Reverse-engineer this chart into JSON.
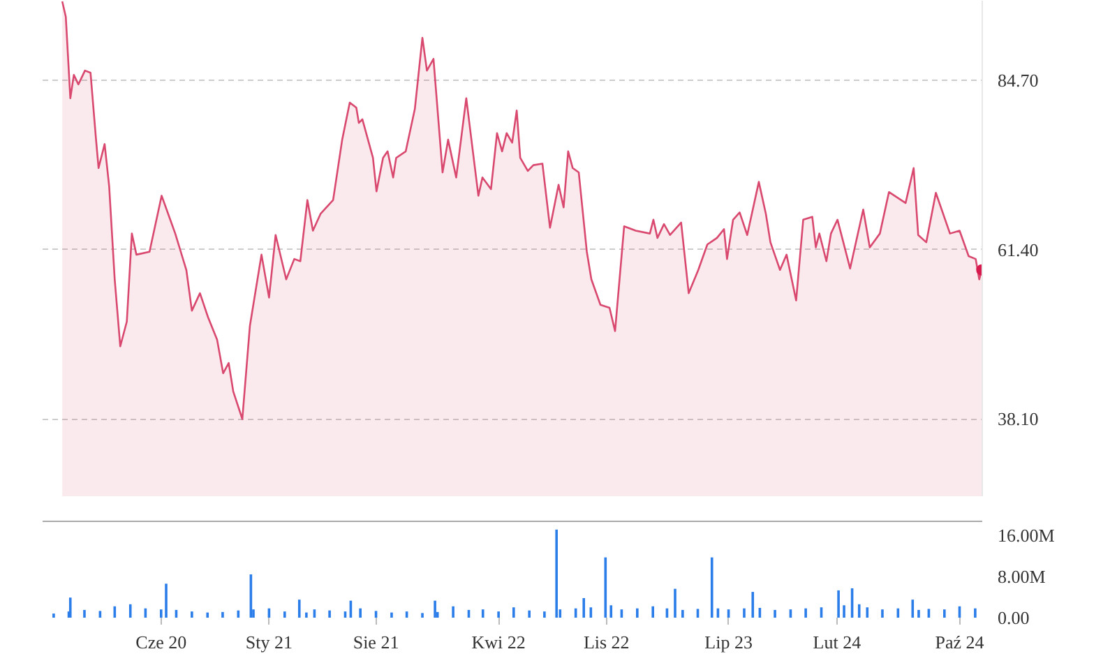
{
  "chart_data": [
    {
      "type": "area",
      "xlim": [
        "2019-10-10",
        "2024-11-15"
      ],
      "ylim": [
        27.5,
        95.6
      ],
      "yticks": [
        {
          "value": 38.1,
          "label": "38.10"
        },
        {
          "value": 61.4,
          "label": "61.40"
        },
        {
          "value": 84.7,
          "label": "84.70"
        }
      ],
      "grid": "y",
      "tick_labels": "y",
      "series": [
        {
          "color": "#d9486e",
          "x": [
            "2019-11-18",
            "2019-11-25",
            "2019-12-04",
            "2019-12-11",
            "2019-12-20",
            "2020-01-02",
            "2020-01-13",
            "2020-01-24",
            "2020-01-29",
            "2020-02-10",
            "2020-02-19",
            "2020-03-01",
            "2020-03-12",
            "2020-03-25",
            "2020-04-04",
            "2020-04-13",
            "2020-05-09",
            "2020-06-02",
            "2020-06-15",
            "2020-06-29",
            "2020-07-21",
            "2020-08-01",
            "2020-08-17",
            "2020-09-02",
            "2020-09-20",
            "2020-10-02",
            "2020-10-13",
            "2020-10-22",
            "2020-11-09",
            "2020-11-24",
            "2020-12-17",
            "2021-01-01",
            "2021-01-14",
            "2021-02-04",
            "2021-02-20",
            "2021-03-04",
            "2021-03-18",
            "2021-03-29",
            "2021-04-13",
            "2021-05-08",
            "2021-05-26",
            "2021-06-10",
            "2021-06-23",
            "2021-06-28",
            "2021-07-05",
            "2021-07-26",
            "2021-08-02",
            "2021-08-15",
            "2021-08-24",
            "2021-09-04",
            "2021-09-10",
            "2021-09-29",
            "2021-10-17",
            "2021-11-01",
            "2021-11-10",
            "2021-11-23",
            "2021-12-11",
            "2021-12-22",
            "2022-01-07",
            "2022-01-27",
            "2022-02-20",
            "2022-02-28",
            "2022-03-17",
            "2022-03-29",
            "2022-04-08",
            "2022-04-17",
            "2022-04-28",
            "2022-05-07",
            "2022-05-14",
            "2022-05-29",
            "2022-06-09",
            "2022-06-27",
            "2022-07-12",
            "2022-07-29",
            "2022-08-08",
            "2022-08-17",
            "2022-08-26",
            "2022-09-07",
            "2022-09-23",
            "2022-10-02",
            "2022-10-20",
            "2022-11-07",
            "2022-11-18",
            "2022-12-06",
            "2022-12-29",
            "2023-01-26",
            "2023-02-02",
            "2023-02-10",
            "2023-02-23",
            "2023-03-07",
            "2023-03-29",
            "2023-04-13",
            "2023-05-02",
            "2023-05-20",
            "2023-06-08",
            "2023-06-22",
            "2023-06-28",
            "2023-07-10",
            "2023-07-23",
            "2023-08-07",
            "2023-08-30",
            "2023-09-13",
            "2023-09-22",
            "2023-10-11",
            "2023-10-24",
            "2023-11-12",
            "2023-11-26",
            "2023-12-14",
            "2023-12-21",
            "2023-12-28",
            "2024-01-11",
            "2024-01-20",
            "2024-02-02",
            "2024-02-27",
            "2024-03-24",
            "2024-04-06",
            "2024-04-26",
            "2024-05-14",
            "2024-06-16",
            "2024-07-02",
            "2024-07-11",
            "2024-07-27",
            "2024-08-15",
            "2024-09-12",
            "2024-10-01",
            "2024-10-19",
            "2024-11-02",
            "2024-11-09",
            "2024-11-14"
          ],
          "values": [
            95.5,
            93.4,
            82.2,
            85.4,
            84.1,
            86.0,
            85.7,
            76.5,
            72.6,
            75.9,
            70.1,
            57.3,
            48.1,
            51.5,
            63.6,
            60.7,
            61.1,
            68.8,
            66.3,
            63.6,
            58.6,
            53.0,
            55.4,
            52.1,
            49.0,
            44.4,
            45.8,
            41.9,
            38.1,
            50.9,
            60.7,
            54.8,
            63.4,
            57.3,
            60.1,
            59.8,
            68.2,
            64.0,
            66.3,
            68.2,
            76.5,
            81.6,
            80.9,
            78.8,
            79.3,
            74.0,
            69.4,
            74.0,
            74.9,
            71.3,
            74.0,
            74.9,
            80.7,
            90.5,
            86.0,
            87.6,
            72.0,
            76.5,
            71.3,
            82.2,
            68.8,
            71.3,
            69.7,
            77.4,
            74.9,
            77.4,
            76.1,
            80.5,
            74.0,
            72.2,
            73.0,
            73.2,
            64.4,
            70.3,
            67.2,
            74.9,
            72.6,
            72.0,
            61.1,
            57.3,
            53.8,
            53.4,
            50.2,
            64.6,
            64.0,
            63.6,
            65.5,
            63.0,
            64.9,
            63.4,
            65.1,
            55.4,
            58.6,
            62.1,
            63.0,
            64.2,
            60.1,
            65.5,
            66.5,
            63.4,
            70.7,
            66.3,
            62.4,
            58.6,
            60.7,
            54.4,
            65.5,
            65.9,
            61.7,
            63.6,
            59.8,
            63.6,
            65.5,
            58.8,
            66.9,
            61.7,
            63.6,
            69.3,
            67.8,
            72.6,
            63.4,
            62.4,
            69.2,
            63.6,
            64.0,
            60.5,
            60.1,
            57.3,
            58.6
          ]
        },
        {
          "type": "scatter",
          "marker": "circle",
          "color": "#d81b4f",
          "x": [
            "2024-11-14"
          ],
          "values": [
            58.6
          ]
        }
      ]
    },
    {
      "type": "bar",
      "color": "#2b7de9",
      "xlim": [
        "2019-10-10",
        "2024-11-15"
      ],
      "ylim": [
        0,
        18.7
      ],
      "grid": false,
      "xticks": [
        {
          "value": "2020-06-01",
          "label": "Cze 20"
        },
        {
          "value": "2021-01-01",
          "label": "Sty 21"
        },
        {
          "value": "2021-08-01",
          "label": "Sie 21"
        },
        {
          "value": "2022-04-01",
          "label": "Kwi 22"
        },
        {
          "value": "2022-11-01",
          "label": "Lis 22"
        },
        {
          "value": "2023-07-01",
          "label": "Lip 23"
        },
        {
          "value": "2024-02-01",
          "label": "Lut 24"
        },
        {
          "value": "2024-10-01",
          "label": "Paź 24"
        }
      ],
      "yticks": [
        {
          "value": 0,
          "label": "0.00"
        },
        {
          "value": 8,
          "label": "8.00M"
        },
        {
          "value": 16,
          "label": "16.00M"
        }
      ],
      "x": [
        "2019-11-01",
        "2019-12-01",
        "2019-12-04",
        "2020-01-01",
        "2020-02-01",
        "2020-03-01",
        "2020-04-01",
        "2020-05-01",
        "2020-06-01",
        "2020-06-11",
        "2020-07-01",
        "2020-08-01",
        "2020-09-01",
        "2020-10-01",
        "2020-11-01",
        "2020-11-26",
        "2020-12-01",
        "2021-01-01",
        "2021-02-01",
        "2021-03-02",
        "2021-03-16",
        "2021-04-01",
        "2021-05-01",
        "2021-06-01",
        "2021-06-12",
        "2021-07-01",
        "2021-08-01",
        "2021-09-01",
        "2021-10-01",
        "2021-11-01",
        "2021-11-26",
        "2021-12-01",
        "2022-01-01",
        "2022-02-01",
        "2022-03-01",
        "2022-04-01",
        "2022-05-01",
        "2022-06-01",
        "2022-07-01",
        "2022-07-25",
        "2022-08-01",
        "2022-09-01",
        "2022-09-17",
        "2022-10-01",
        "2022-10-30",
        "2022-11-10",
        "2022-12-01",
        "2023-01-01",
        "2023-02-01",
        "2023-03-01",
        "2023-03-17",
        "2023-04-01",
        "2023-05-01",
        "2023-05-29",
        "2023-06-10",
        "2023-07-01",
        "2023-08-01",
        "2023-08-18",
        "2023-09-01",
        "2023-10-01",
        "2023-11-01",
        "2023-12-01",
        "2024-01-01",
        "2024-02-04",
        "2024-02-15",
        "2024-03-02",
        "2024-03-16",
        "2024-04-01",
        "2024-05-01",
        "2024-06-01",
        "2024-06-30",
        "2024-07-12",
        "2024-08-01",
        "2024-09-01",
        "2024-10-01",
        "2024-11-01"
      ],
      "values": [
        0.8,
        1.2,
        3.9,
        1.5,
        1.3,
        2.2,
        2.6,
        1.8,
        1.6,
        6.6,
        1.5,
        1.2,
        1.0,
        1.1,
        1.4,
        8.4,
        1.6,
        1.8,
        1.2,
        3.5,
        1.0,
        1.6,
        1.4,
        1.2,
        3.3,
        1.8,
        1.3,
        1.0,
        1.2,
        0.9,
        3.3,
        1.1,
        2.2,
        1.5,
        1.6,
        1.2,
        2.0,
        1.4,
        1.2,
        17.1,
        1.6,
        1.8,
        3.8,
        2.0,
        11.7,
        2.4,
        1.6,
        1.8,
        2.2,
        1.8,
        5.6,
        1.5,
        1.7,
        11.7,
        1.8,
        1.6,
        1.8,
        5.0,
        1.9,
        1.5,
        1.6,
        1.8,
        2.0,
        5.3,
        2.4,
        5.7,
        2.6,
        2.0,
        1.6,
        1.8,
        3.5,
        1.5,
        1.7,
        1.6,
        2.2,
        1.8
      ]
    }
  ]
}
